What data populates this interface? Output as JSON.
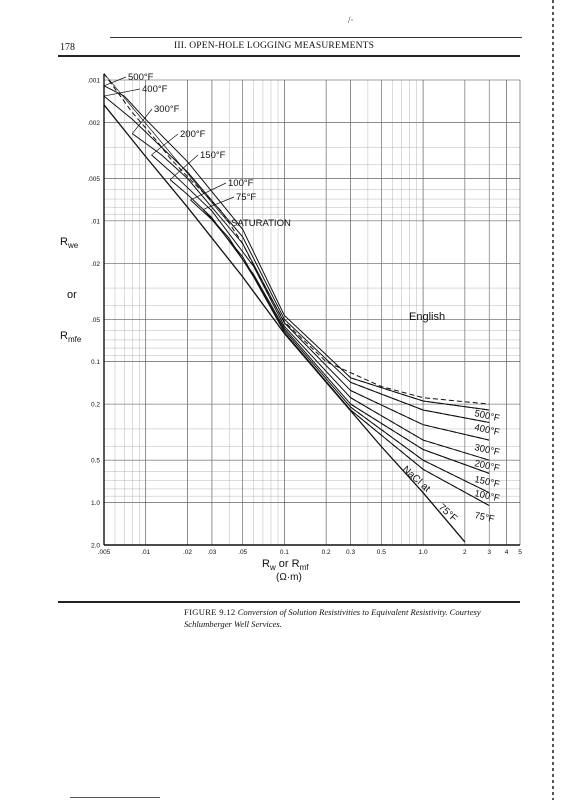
{
  "page": {
    "page_number": "178",
    "running_header": "III. OPEN-HOLE LOGGING MEASUREMENTS",
    "top_mark": "/·"
  },
  "caption": {
    "figure_number": "FIGURE 9.12",
    "text": "Conversion of Solution Resistivities to Equivalent Resistivity. Courtesy Schlumberger Well Services."
  },
  "chart_data": {
    "type": "line",
    "x_scale": "log",
    "y_scale": "log",
    "y_inverted": true,
    "xlim": [
      0.005,
      5
    ],
    "ylim": [
      0.001,
      2.0
    ],
    "grid": true,
    "legend": "inline curve labels",
    "corner_label": "English",
    "xlabel": "R",
    "xlabel_parts": {
      "w": "w",
      "or": " or R",
      "mf": "mf"
    },
    "xunit": "(Ω·m)",
    "ylabel_lines": {
      "rwe_R": "R",
      "rwe_sub": "we",
      "or": "or",
      "rmfe_R": "R",
      "rmfe_sub": "mfe"
    },
    "x_ticks": [
      {
        "value": 0.005,
        "label": ".005"
      },
      {
        "value": 0.01,
        "label": ".01"
      },
      {
        "value": 0.02,
        "label": ".02"
      },
      {
        "value": 0.03,
        "label": ".03"
      },
      {
        "value": 0.05,
        "label": ".05"
      },
      {
        "value": 0.1,
        "label": "0.1"
      },
      {
        "value": 0.2,
        "label": "0.2"
      },
      {
        "value": 0.3,
        "label": "0.3"
      },
      {
        "value": 0.5,
        "label": "0.5"
      },
      {
        "value": 1.0,
        "label": "1.0"
      },
      {
        "value": 2,
        "label": "2"
      },
      {
        "value": 3,
        "label": "3"
      },
      {
        "value": 4,
        "label": "4"
      },
      {
        "value": 5,
        "label": "5"
      }
    ],
    "y_ticks": [
      {
        "value": 0.001,
        "label": ".001"
      },
      {
        "value": 0.002,
        "label": ".002"
      },
      {
        "value": 0.005,
        "label": ".005"
      },
      {
        "value": 0.01,
        "label": ".01"
      },
      {
        "value": 0.02,
        "label": ".02"
      },
      {
        "value": 0.05,
        "label": ".05"
      },
      {
        "value": 0.1,
        "label": "0.1"
      },
      {
        "value": 0.2,
        "label": "0.2"
      },
      {
        "value": 0.5,
        "label": "0.5"
      },
      {
        "value": 1.0,
        "label": "1.0"
      },
      {
        "value": 2.0,
        "label": "2.0"
      }
    ],
    "series": [
      {
        "name": "500°F",
        "points": [
          [
            0.005,
            0.0011
          ],
          [
            0.007,
            0.0013
          ],
          [
            0.01,
            0.0019
          ],
          [
            0.02,
            0.0038
          ],
          [
            0.05,
            0.0115
          ],
          [
            0.1,
            0.047
          ],
          [
            0.3,
            0.13
          ],
          [
            1.0,
            0.19
          ],
          [
            3.0,
            0.22
          ]
        ]
      },
      {
        "name": "400°F",
        "points": [
          [
            0.005,
            0.0013
          ],
          [
            0.008,
            0.0019
          ],
          [
            0.02,
            0.0045
          ],
          [
            0.05,
            0.013
          ],
          [
            0.1,
            0.05
          ],
          [
            0.3,
            0.14
          ],
          [
            1.0,
            0.22
          ],
          [
            3.0,
            0.27
          ]
        ]
      },
      {
        "name": "300°F",
        "points": [
          [
            0.008,
            0.0024
          ],
          [
            0.013,
            0.0034
          ],
          [
            0.02,
            0.005
          ],
          [
            0.05,
            0.0145
          ],
          [
            0.1,
            0.053
          ],
          [
            0.3,
            0.16
          ],
          [
            1.0,
            0.28
          ],
          [
            3.0,
            0.36
          ]
        ]
      },
      {
        "name": "200°F",
        "points": [
          [
            0.011,
            0.0034
          ],
          [
            0.016,
            0.0047
          ],
          [
            0.03,
            0.0085
          ],
          [
            0.06,
            0.021
          ],
          [
            0.1,
            0.056
          ],
          [
            0.3,
            0.18
          ],
          [
            1.0,
            0.36
          ],
          [
            3.0,
            0.5
          ]
        ]
      },
      {
        "name": "150°F",
        "points": [
          [
            0.015,
            0.0051
          ],
          [
            0.02,
            0.0065
          ],
          [
            0.03,
            0.0095
          ],
          [
            0.06,
            0.024
          ],
          [
            0.1,
            0.058
          ],
          [
            0.3,
            0.2
          ],
          [
            1.0,
            0.42
          ],
          [
            3.0,
            0.62
          ]
        ]
      },
      {
        "name": "100°F",
        "points": [
          [
            0.021,
            0.0071
          ],
          [
            0.03,
            0.0098
          ],
          [
            0.05,
            0.018
          ],
          [
            0.1,
            0.06
          ],
          [
            0.3,
            0.21
          ],
          [
            1.0,
            0.5
          ],
          [
            3.0,
            0.85
          ]
        ]
      },
      {
        "name": "75°F",
        "points": [
          [
            0.026,
            0.0083
          ],
          [
            0.04,
            0.0133
          ],
          [
            0.06,
            0.025
          ],
          [
            0.1,
            0.062
          ],
          [
            0.3,
            0.22
          ],
          [
            1.0,
            0.58
          ],
          [
            3.0,
            1.05
          ]
        ]
      },
      {
        "name": "SATURATION",
        "points": [
          [
            0.005,
            0.0009
          ],
          [
            0.008,
            0.0017
          ],
          [
            0.012,
            0.0027
          ],
          [
            0.015,
            0.0036
          ],
          [
            0.021,
            0.0051
          ],
          [
            0.026,
            0.0063
          ],
          [
            0.035,
            0.0085
          ],
          [
            0.05,
            0.0145
          ],
          [
            0.07,
            0.028
          ],
          [
            0.1,
            0.052
          ],
          [
            0.2,
            0.1
          ],
          [
            0.5,
            0.15
          ],
          [
            1.0,
            0.18
          ],
          [
            3.0,
            0.2
          ]
        ]
      },
      {
        "name": "NaCl at 75°F",
        "points": [
          [
            0.005,
            0.0015
          ],
          [
            0.01,
            0.0035
          ],
          [
            0.02,
            0.008
          ],
          [
            0.05,
            0.025
          ],
          [
            0.1,
            0.063
          ],
          [
            0.2,
            0.14
          ],
          [
            0.5,
            0.4
          ],
          [
            1.0,
            0.85
          ],
          [
            2.0,
            1.9
          ]
        ]
      }
    ],
    "curve_labels": {
      "upper": [
        "500°F",
        "400°F",
        "300°F",
        "200°F",
        "150°F",
        "100°F",
        "75°F",
        "SATURATION"
      ],
      "right": [
        "500°F",
        "400°F",
        "300°F",
        "200°F",
        "150°F",
        "100°F",
        "75°F"
      ],
      "nacl": "NaCl at",
      "nacl_temp": "75°F"
    }
  }
}
